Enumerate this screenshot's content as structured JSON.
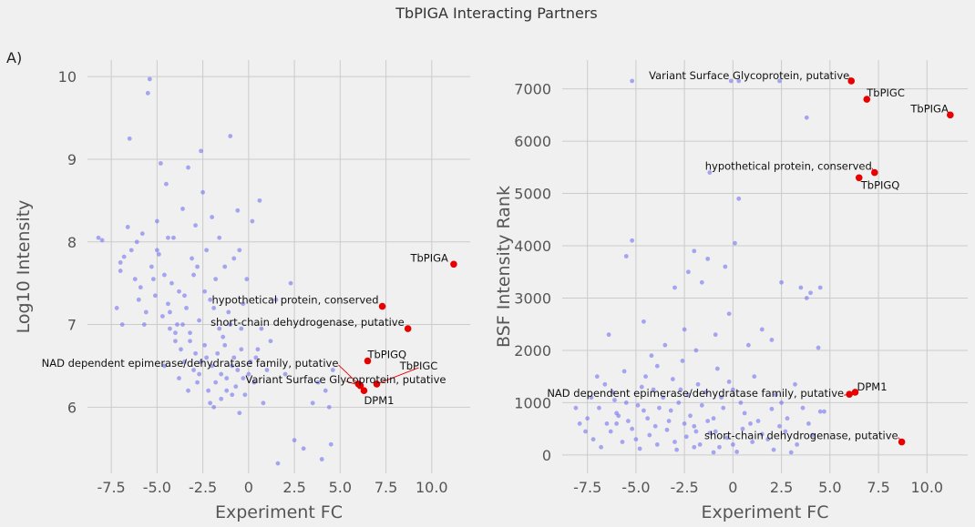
{
  "figure": {
    "title": "TbPIGA Interacting Partners",
    "panel_label": "A)"
  },
  "colors": {
    "background": "#f0f0f0",
    "grid": "#cbcbcb",
    "points": "#7b7bf0",
    "highlight": "#e60000"
  },
  "chart_data": [
    {
      "type": "scatter",
      "title": "",
      "xlabel": "Experiment FC",
      "ylabel": "Log10 Intensity",
      "xlim": [
        -8.8,
        12.1
      ],
      "ylim": [
        5.2,
        10.2
      ],
      "xticks": [
        "-7.5",
        "-5.0",
        "-2.5",
        "0",
        "2.5",
        "5.0",
        "7.5",
        "10.0"
      ],
      "yticks": [
        "6",
        "7",
        "8",
        "9",
        "10"
      ],
      "grid": true,
      "background_points": [
        [
          -8.2,
          8.05
        ],
        [
          -8.0,
          8.02
        ],
        [
          -7.0,
          7.75
        ],
        [
          -7.0,
          7.65
        ],
        [
          -6.8,
          7.82
        ],
        [
          -6.6,
          8.18
        ],
        [
          -6.5,
          9.25
        ],
        [
          -6.4,
          7.9
        ],
        [
          -6.2,
          7.55
        ],
        [
          -6.1,
          8.0
        ],
        [
          -6.0,
          7.3
        ],
        [
          -5.9,
          7.45
        ],
        [
          -5.8,
          8.1
        ],
        [
          -5.6,
          7.15
        ],
        [
          -5.5,
          9.8
        ],
        [
          -5.4,
          9.97
        ],
        [
          -5.3,
          7.7
        ],
        [
          -5.2,
          7.55
        ],
        [
          -5.1,
          7.35
        ],
        [
          -5.0,
          8.25
        ],
        [
          -4.9,
          7.85
        ],
        [
          -4.8,
          8.95
        ],
        [
          -4.7,
          7.1
        ],
        [
          -4.6,
          7.6
        ],
        [
          -4.5,
          8.7
        ],
        [
          -4.4,
          7.25
        ],
        [
          -4.3,
          6.95
        ],
        [
          -4.2,
          7.5
        ],
        [
          -4.1,
          8.05
        ],
        [
          -4.0,
          6.8
        ],
        [
          -3.9,
          7.0
        ],
        [
          -3.8,
          7.4
        ],
        [
          -3.7,
          6.7
        ],
        [
          -3.6,
          8.4
        ],
        [
          -3.5,
          6.55
        ],
        [
          -3.4,
          7.2
        ],
        [
          -3.3,
          8.9
        ],
        [
          -3.2,
          6.9
        ],
        [
          -3.1,
          7.8
        ],
        [
          -3.0,
          6.45
        ],
        [
          -2.9,
          8.2
        ],
        [
          -2.8,
          6.3
        ],
        [
          -2.7,
          7.05
        ],
        [
          -2.6,
          9.1
        ],
        [
          -2.5,
          8.6
        ],
        [
          -2.4,
          6.75
        ],
        [
          -2.3,
          7.9
        ],
        [
          -2.2,
          6.2
        ],
        [
          -2.1,
          7.3
        ],
        [
          -2.0,
          8.3
        ],
        [
          -1.9,
          6.0
        ],
        [
          -1.8,
          7.55
        ],
        [
          -1.7,
          6.65
        ],
        [
          -1.6,
          8.05
        ],
        [
          -1.5,
          6.1
        ],
        [
          -1.4,
          6.85
        ],
        [
          -1.3,
          7.7
        ],
        [
          -1.2,
          6.35
        ],
        [
          -1.1,
          7.15
        ],
        [
          -1.0,
          9.28
        ],
        [
          -0.9,
          6.5
        ],
        [
          -0.8,
          7.8
        ],
        [
          -0.7,
          6.25
        ],
        [
          -0.6,
          8.38
        ],
        [
          -0.5,
          5.93
        ],
        [
          -0.4,
          6.95
        ],
        [
          -0.3,
          7.25
        ],
        [
          -0.2,
          6.15
        ],
        [
          -0.1,
          7.55
        ],
        [
          0.0,
          6.4
        ],
        [
          0.2,
          8.25
        ],
        [
          0.4,
          6.6
        ],
        [
          0.6,
          8.5
        ],
        [
          0.8,
          6.05
        ],
        [
          1.0,
          6.45
        ],
        [
          1.6,
          5.32
        ],
        [
          2.5,
          5.6
        ],
        [
          3.5,
          6.05
        ],
        [
          4.0,
          5.37
        ],
        [
          4.4,
          6.0
        ],
        [
          4.5,
          5.55
        ],
        [
          -7.2,
          7.2
        ],
        [
          -6.9,
          7.0
        ],
        [
          -5.7,
          7.0
        ],
        [
          -4.3,
          7.15
        ],
        [
          -3.6,
          7.0
        ],
        [
          -3.2,
          6.8
        ],
        [
          -2.9,
          6.65
        ],
        [
          -2.6,
          6.55
        ],
        [
          -2.3,
          6.6
        ],
        [
          -2.0,
          6.5
        ],
        [
          -1.8,
          6.3
        ],
        [
          -1.5,
          6.4
        ],
        [
          -1.2,
          6.2
        ],
        [
          -0.9,
          6.15
        ],
        [
          -0.6,
          6.45
        ],
        [
          -0.3,
          6.35
        ],
        [
          0.1,
          6.55
        ],
        [
          0.3,
          6.3
        ],
        [
          0.5,
          6.7
        ],
        [
          1.2,
          6.8
        ],
        [
          2.0,
          6.4
        ],
        [
          2.3,
          7.5
        ],
        [
          3.0,
          5.5
        ],
        [
          3.8,
          6.3
        ],
        [
          4.2,
          6.2
        ],
        [
          4.6,
          6.45
        ],
        [
          -3.0,
          7.6
        ],
        [
          -2.4,
          7.4
        ],
        [
          -1.0,
          7.0
        ],
        [
          -0.4,
          6.7
        ],
        [
          -4.6,
          6.5
        ],
        [
          -4.0,
          6.9
        ],
        [
          -3.8,
          6.35
        ],
        [
          -3.3,
          6.2
        ],
        [
          -2.7,
          6.4
        ],
        [
          -2.1,
          6.05
        ],
        [
          -1.6,
          6.95
        ],
        [
          -0.8,
          6.6
        ],
        [
          0.7,
          6.95
        ],
        [
          1.5,
          7.3
        ],
        [
          -5.0,
          7.9
        ],
        [
          -4.4,
          8.05
        ],
        [
          -3.5,
          7.35
        ],
        [
          -2.8,
          7.7
        ],
        [
          -1.9,
          7.2
        ],
        [
          -1.3,
          6.75
        ],
        [
          -0.5,
          7.9
        ]
      ],
      "highlighted": [
        {
          "label": "TbPIGA",
          "x": 11.2,
          "y": 7.73
        },
        {
          "label": "hypothetical protein, conserved",
          "x": 7.3,
          "y": 7.22
        },
        {
          "label": "short-chain dehydrogenase, putative",
          "x": 8.7,
          "y": 6.95
        },
        {
          "label": "TbPIGQ",
          "x": 6.5,
          "y": 6.56
        },
        {
          "label": "TbPIGC",
          "x": 7.0,
          "y": 6.28
        },
        {
          "label": "NAD dependent epimerase/dehydratase family, putative",
          "x": 6.0,
          "y": 6.28
        },
        {
          "label": "Variant Surface Glycoprotein, putative",
          "x": 6.1,
          "y": 6.26
        },
        {
          "label": "DPM1",
          "x": 6.3,
          "y": 6.2
        }
      ]
    },
    {
      "type": "scatter",
      "title": "",
      "xlabel": "Experiment FC",
      "ylabel": "BSF Intensity Rank",
      "xlim": [
        -8.8,
        12.1
      ],
      "ylim": [
        -350,
        7550
      ],
      "xticks": [
        "-7.5",
        "-5.0",
        "-2.5",
        "0",
        "2.5",
        "5.0",
        "7.5",
        "10.0"
      ],
      "yticks": [
        "0",
        "1000",
        "2000",
        "3000",
        "4000",
        "5000",
        "6000",
        "7000"
      ],
      "grid": true,
      "background_points": [
        [
          -5.2,
          7150
        ],
        [
          -0.1,
          7150
        ],
        [
          0.3,
          7150
        ],
        [
          2.4,
          7150
        ],
        [
          3.8,
          6450
        ],
        [
          -1.2,
          5400
        ],
        [
          0.3,
          4900
        ],
        [
          -5.2,
          4100
        ],
        [
          -5.5,
          3800
        ],
        [
          0.1,
          4050
        ],
        [
          -2.0,
          3900
        ],
        [
          -1.3,
          3750
        ],
        [
          -0.4,
          3600
        ],
        [
          -1.6,
          3300
        ],
        [
          -2.3,
          3500
        ],
        [
          -3.0,
          3200
        ],
        [
          2.5,
          3300
        ],
        [
          3.5,
          3200
        ],
        [
          4.0,
          3100
        ],
        [
          4.5,
          3200
        ],
        [
          3.8,
          3000
        ],
        [
          -4.6,
          2550
        ],
        [
          -0.2,
          2700
        ],
        [
          -2.5,
          2400
        ],
        [
          1.5,
          2400
        ],
        [
          -0.9,
          2300
        ],
        [
          -3.5,
          2100
        ],
        [
          -6.4,
          2300
        ],
        [
          -4.2,
          1900
        ],
        [
          -1.9,
          2000
        ],
        [
          0.8,
          2100
        ],
        [
          2.0,
          2200
        ],
        [
          4.4,
          2050
        ],
        [
          -7.3,
          1100
        ],
        [
          -7.0,
          1500
        ],
        [
          -6.2,
          1200
        ],
        [
          -5.6,
          1600
        ],
        [
          -4.7,
          1300
        ],
        [
          -3.9,
          1700
        ],
        [
          -3.1,
          1450
        ],
        [
          -2.6,
          1800
        ],
        [
          -1.8,
          1350
        ],
        [
          -0.8,
          1650
        ],
        [
          0.0,
          1250
        ],
        [
          1.1,
          1500
        ],
        [
          2.2,
          1150
        ],
        [
          3.2,
          1350
        ],
        [
          4.5,
          830
        ],
        [
          4.7,
          830
        ],
        [
          -8.1,
          900
        ],
        [
          -7.5,
          700
        ],
        [
          -6.9,
          900
        ],
        [
          -6.5,
          600
        ],
        [
          -6.0,
          800
        ],
        [
          -5.4,
          650
        ],
        [
          -4.9,
          950
        ],
        [
          -4.4,
          700
        ],
        [
          -3.8,
          900
        ],
        [
          -3.3,
          650
        ],
        [
          -2.8,
          1000
        ],
        [
          -2.2,
          750
        ],
        [
          -1.6,
          950
        ],
        [
          -1.0,
          700
        ],
        [
          -0.5,
          900
        ],
        [
          0.6,
          800
        ],
        [
          1.3,
          650
        ],
        [
          2.0,
          880
        ],
        [
          2.8,
          700
        ],
        [
          3.6,
          900
        ],
        [
          -7.2,
          300
        ],
        [
          -6.8,
          150
        ],
        [
          -6.3,
          450
        ],
        [
          -5.7,
          250
        ],
        [
          -5.2,
          500
        ],
        [
          -4.8,
          120
        ],
        [
          -4.3,
          380
        ],
        [
          -3.9,
          200
        ],
        [
          -3.4,
          480
        ],
        [
          -2.9,
          100
        ],
        [
          -2.4,
          350
        ],
        [
          -2.0,
          550
        ],
        [
          -1.7,
          200
        ],
        [
          -1.2,
          420
        ],
        [
          -0.7,
          150
        ],
        [
          -0.3,
          330
        ],
        [
          0.2,
          60
        ],
        [
          0.5,
          500
        ],
        [
          1.0,
          250
        ],
        [
          1.5,
          400
        ],
        [
          2.1,
          100
        ],
        [
          2.7,
          450
        ],
        [
          3.3,
          200
        ],
        [
          4.1,
          380
        ],
        [
          -6.0,
          600
        ],
        [
          -5.0,
          300
        ],
        [
          -4.0,
          550
        ],
        [
          -3.0,
          250
        ],
        [
          -2.0,
          150
        ],
        [
          -1.0,
          50
        ],
        [
          0.0,
          200
        ],
        [
          1.8,
          300
        ],
        [
          3.0,
          50
        ],
        [
          -7.6,
          450
        ],
        [
          -5.5,
          1000
        ],
        [
          -3.6,
          1100
        ],
        [
          -1.4,
          1200
        ],
        [
          0.4,
          1000
        ],
        [
          2.5,
          1000
        ],
        [
          -4.5,
          1500
        ],
        [
          -2.7,
          1250
        ],
        [
          -0.2,
          1400
        ],
        [
          -6.6,
          1350
        ],
        [
          -5.9,
          750
        ],
        [
          -4.6,
          850
        ],
        [
          -3.2,
          850
        ],
        [
          -2.5,
          600
        ],
        [
          -1.9,
          450
        ],
        [
          -1.3,
          650
        ],
        [
          -0.9,
          450
        ],
        [
          0.9,
          600
        ],
        [
          2.4,
          550
        ],
        [
          3.9,
          600
        ],
        [
          -7.9,
          600
        ],
        [
          -6.1,
          1050
        ],
        [
          -4.1,
          1250
        ],
        [
          -2.3,
          1150
        ],
        [
          -0.6,
          1100
        ]
      ],
      "highlighted": [
        {
          "label": "Variant Surface Glycoprotein, putative",
          "x": 6.1,
          "y": 7150
        },
        {
          "label": "TbPIGC",
          "x": 6.9,
          "y": 6800
        },
        {
          "label": "TbPIGA",
          "x": 11.2,
          "y": 6500
        },
        {
          "label": "hypothetical protein, conserved",
          "x": 7.3,
          "y": 5400
        },
        {
          "label": "TbPIGQ",
          "x": 6.5,
          "y": 5300
        },
        {
          "label": "DPM1",
          "x": 6.3,
          "y": 1200
        },
        {
          "label": "NAD dependent epimerase/dehydratase family, putative",
          "x": 6.0,
          "y": 1160
        },
        {
          "label": "short-chain dehydrogenase, putative",
          "x": 8.7,
          "y": 250
        }
      ]
    }
  ]
}
